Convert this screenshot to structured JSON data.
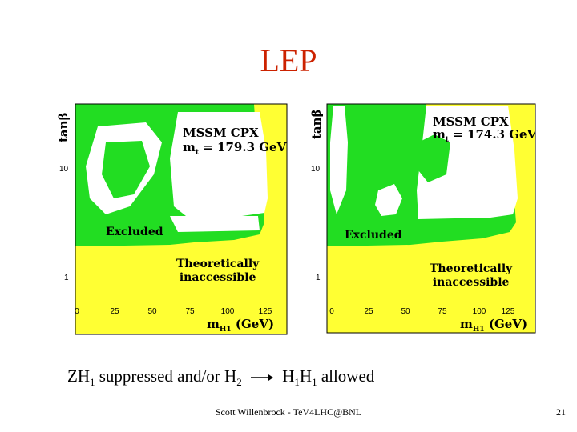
{
  "slide": {
    "title": "LEP",
    "footer": "Scott Willenbrock - TeV4LHC@BNL",
    "page_number": "21",
    "caption": {
      "zh": "ZH",
      "sub1": "1",
      "mid": " suppressed and/or H",
      "sub2": "2",
      "h": "H",
      "sub3": "1",
      "h2": "H",
      "sub4": "1",
      "end": " allowed"
    }
  },
  "plots": [
    {
      "model": "MSSM CPX",
      "mt_prefix": "m",
      "mt_sub": "t",
      "mt_value": " = 179.3 GeV",
      "excluded_label": "Excluded",
      "theory_line1": "Theoretically",
      "theory_line2": "inaccessible",
      "ylabel": "tanβ",
      "xlabel_m": "m",
      "xlabel_sub": "H1",
      "xlabel_unit": " (GeV)",
      "yticks": [
        "10",
        "1"
      ],
      "xticks": [
        "0",
        "25",
        "50",
        "75",
        "100",
        "125"
      ]
    },
    {
      "model": "MSSM CPX",
      "mt_prefix": "m",
      "mt_sub": "t",
      "mt_value": " = 174.3 GeV",
      "excluded_label": "Excluded",
      "theory_line1": "Theoretically",
      "theory_line2": "inaccessible",
      "ylabel": "tanβ",
      "xlabel_m": "m",
      "xlabel_sub": "H1",
      "xlabel_unit": " (GeV)",
      "yticks": [
        "10",
        "1"
      ],
      "xticks": [
        "0",
        "25",
        "50",
        "75",
        "100",
        "125"
      ]
    }
  ],
  "colors": {
    "title": "#cc2200",
    "excluded": "#22dd22",
    "theoretically_inaccessible": "#ffff33",
    "allowed": "#ffffff"
  }
}
